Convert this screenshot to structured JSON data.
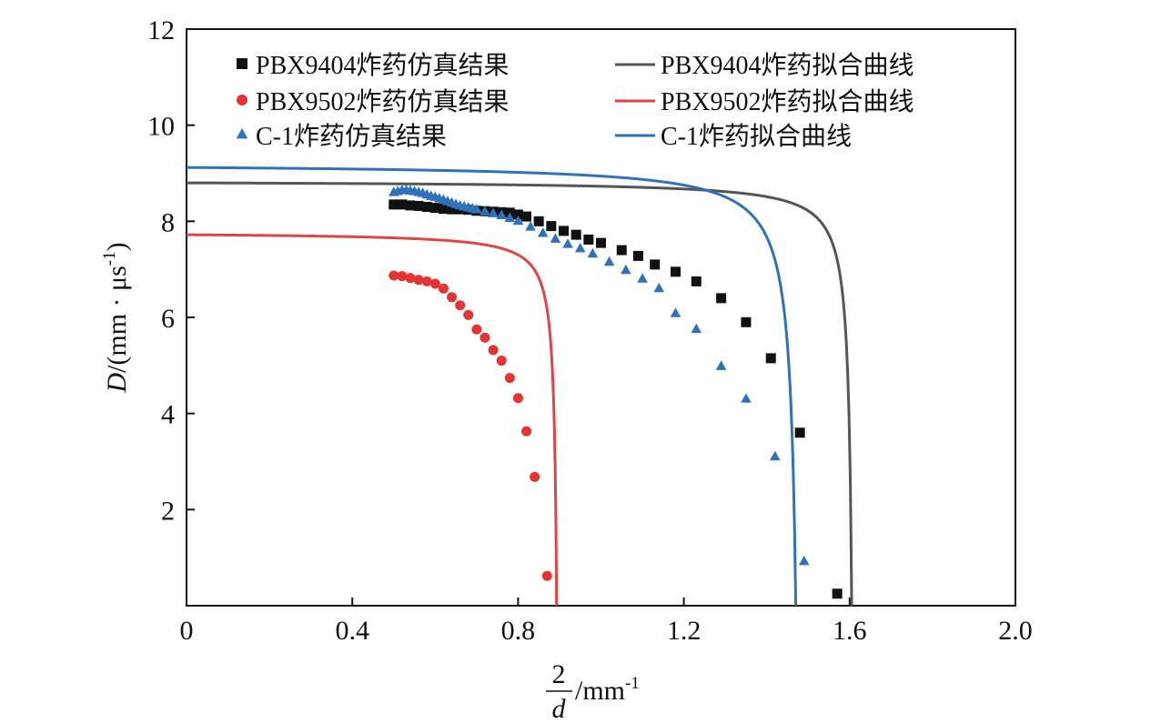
{
  "chart_data": {
    "type": "scatter",
    "xlabel": {
      "numerator": "2",
      "denominator": "d",
      "unit": "/mm",
      "unit_sup": "-1"
    },
    "ylabel": {
      "italic": "D",
      "unit": "/(mm · μs",
      "unit_sup": "-1",
      "close": ")"
    },
    "xlim": [
      0,
      2.0
    ],
    "ylim": [
      0,
      12
    ],
    "xticks": [
      "0",
      "0.4",
      "0.8",
      "1.2",
      "1.6",
      "2.0"
    ],
    "xtick_values": [
      0,
      0.4,
      0.8,
      1.2,
      1.6,
      2.0
    ],
    "yticks": [
      "2",
      "4",
      "6",
      "8",
      "10",
      "12"
    ],
    "ytick_values": [
      2,
      4,
      6,
      8,
      10,
      12
    ],
    "grid": false,
    "legend_position": "top",
    "series": [
      {
        "name": "PBX9404炸药仿真结果",
        "kind": "points",
        "marker": "square",
        "color": "#111111",
        "x": [
          0.5,
          0.52,
          0.54,
          0.56,
          0.58,
          0.6,
          0.62,
          0.64,
          0.66,
          0.68,
          0.7,
          0.72,
          0.74,
          0.76,
          0.78,
          0.8,
          0.82,
          0.85,
          0.88,
          0.91,
          0.94,
          0.97,
          1.0,
          1.05,
          1.09,
          1.13,
          1.18,
          1.23,
          1.29,
          1.35,
          1.41,
          1.48,
          1.57
        ],
        "y": [
          8.35,
          8.35,
          8.33,
          8.32,
          8.3,
          8.28,
          8.26,
          8.25,
          8.25,
          8.24,
          8.22,
          8.21,
          8.2,
          8.19,
          8.18,
          8.14,
          8.1,
          8.0,
          7.9,
          7.8,
          7.72,
          7.62,
          7.55,
          7.4,
          7.28,
          7.1,
          6.95,
          6.75,
          6.4,
          5.9,
          5.15,
          3.6,
          0.25
        ]
      },
      {
        "name": "PBX9404炸药拟合曲线",
        "kind": "line",
        "color": "#555555",
        "D0": 8.8,
        "a": 0.008,
        "xc": 1.605
      },
      {
        "name": "PBX9502炸药仿真结果",
        "kind": "points",
        "marker": "circle",
        "color": "#e53333",
        "x": [
          0.5,
          0.52,
          0.54,
          0.56,
          0.58,
          0.6,
          0.62,
          0.64,
          0.66,
          0.68,
          0.7,
          0.72,
          0.74,
          0.76,
          0.78,
          0.8,
          0.82,
          0.84,
          0.87
        ],
        "y": [
          6.87,
          6.86,
          6.82,
          6.78,
          6.75,
          6.7,
          6.6,
          6.42,
          6.25,
          6.05,
          5.75,
          5.58,
          5.32,
          5.1,
          4.74,
          4.32,
          3.63,
          2.68,
          0.62
        ]
      },
      {
        "name": "PBX9502炸药拟合曲线",
        "kind": "line",
        "color": "#e04545",
        "D0": 7.72,
        "a": 0.006,
        "xc": 0.893
      },
      {
        "name": "C-1炸药仿真结果",
        "kind": "points",
        "marker": "triangle",
        "color": "#2f72bb",
        "x": [
          0.5,
          0.51,
          0.52,
          0.53,
          0.54,
          0.55,
          0.56,
          0.57,
          0.58,
          0.59,
          0.6,
          0.61,
          0.62,
          0.63,
          0.64,
          0.65,
          0.66,
          0.67,
          0.68,
          0.69,
          0.7,
          0.72,
          0.74,
          0.76,
          0.78,
          0.8,
          0.83,
          0.86,
          0.89,
          0.92,
          0.95,
          0.98,
          1.02,
          1.06,
          1.1,
          1.14,
          1.18,
          1.23,
          1.29,
          1.35,
          1.42,
          1.49
        ],
        "y": [
          8.6,
          8.62,
          8.64,
          8.64,
          8.63,
          8.62,
          8.6,
          8.58,
          8.55,
          8.52,
          8.5,
          8.47,
          8.44,
          8.41,
          8.38,
          8.35,
          8.32,
          8.3,
          8.28,
          8.26,
          8.24,
          8.2,
          8.16,
          8.12,
          8.06,
          8.0,
          7.88,
          7.75,
          7.63,
          7.52,
          7.43,
          7.32,
          7.15,
          6.98,
          6.8,
          6.6,
          6.08,
          5.75,
          4.98,
          4.3,
          3.1,
          0.92
        ]
      },
      {
        "name": "C-1炸药拟合曲线",
        "kind": "line",
        "color": "#2f72bb",
        "D0": 9.12,
        "a": 0.014,
        "xc": 1.47
      }
    ]
  }
}
